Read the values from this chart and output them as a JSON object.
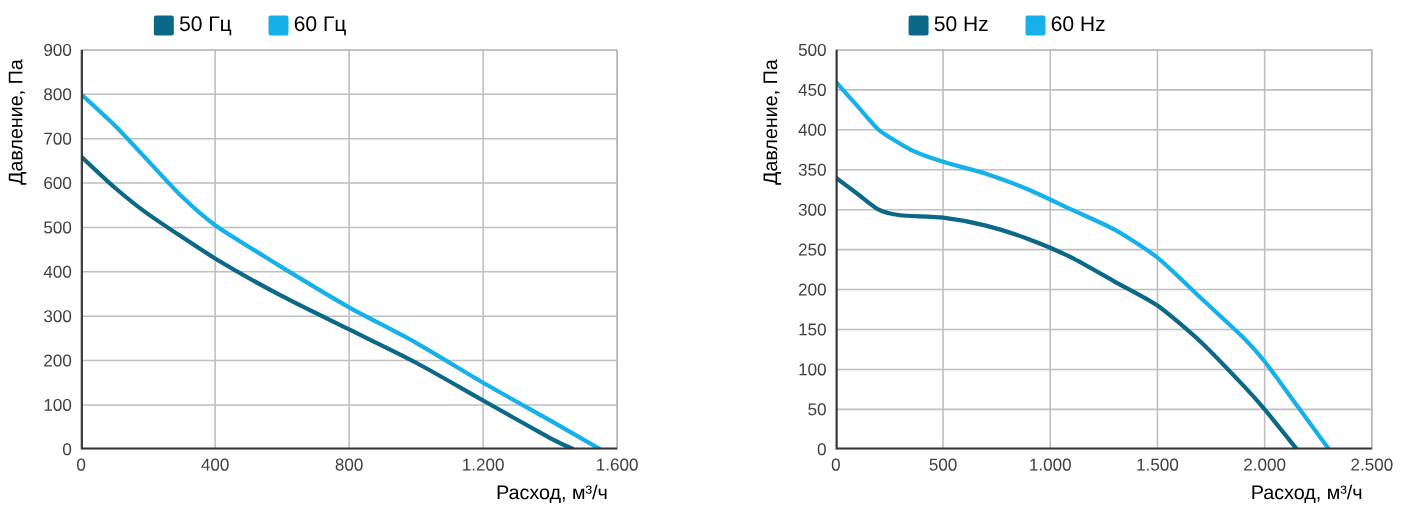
{
  "chart_data": [
    {
      "type": "line",
      "xlabel": "Расход, м³/ч",
      "ylabel": "Давление, Па",
      "grid": true,
      "legend": "top",
      "xlim": [
        0,
        1600
      ],
      "xticks": [
        0,
        400,
        800,
        {
          "value": 1200,
          "label": "1.200"
        },
        {
          "value": 1600,
          "label": "1.600"
        }
      ],
      "ylim": [
        0,
        900
      ],
      "yticks": [
        0,
        100,
        200,
        300,
        400,
        500,
        600,
        700,
        800,
        900
      ],
      "series": [
        {
          "name": "50 Гц",
          "color": "#0b6888",
          "x": [
            0,
            100,
            200,
            400,
            600,
            800,
            1000,
            1200,
            1400,
            1470
          ],
          "values": [
            660,
            590,
            530,
            430,
            345,
            270,
            195,
            110,
            25,
            0
          ]
        },
        {
          "name": "60 Гц",
          "color": "#16b0ea",
          "x": [
            0,
            100,
            200,
            300,
            400,
            600,
            800,
            1000,
            1200,
            1400,
            1550
          ],
          "values": [
            800,
            730,
            650,
            570,
            505,
            410,
            320,
            240,
            150,
            65,
            0
          ]
        }
      ]
    },
    {
      "type": "line",
      "xlabel": "Расход, м³/ч",
      "ylabel": "Давление, Па",
      "grid": true,
      "legend": "top",
      "xlim": [
        0,
        2500
      ],
      "xticks": [
        0,
        500,
        {
          "value": 1000,
          "label": "1.000"
        },
        {
          "value": 1500,
          "label": "1.500"
        },
        {
          "value": 2000,
          "label": "2.000"
        },
        {
          "value": 2500,
          "label": "2.500"
        }
      ],
      "ylim": [
        0,
        500
      ],
      "yticks": [
        0,
        50,
        100,
        150,
        200,
        250,
        300,
        350,
        400,
        450,
        500
      ],
      "series": [
        {
          "name": "50 Hz",
          "color": "#0b6888",
          "x": [
            0,
            100,
            200,
            300,
            500,
            700,
            900,
            1100,
            1300,
            1500,
            1700,
            1900,
            2000,
            2150
          ],
          "values": [
            340,
            320,
            300,
            293,
            290,
            280,
            263,
            240,
            210,
            180,
            135,
            80,
            50,
            0
          ]
        },
        {
          "name": "60 Hz",
          "color": "#16b0ea",
          "x": [
            0,
            100,
            200,
            350,
            500,
            700,
            900,
            1100,
            1300,
            1500,
            1700,
            1900,
            2000,
            2150,
            2300
          ],
          "values": [
            460,
            430,
            400,
            375,
            360,
            345,
            325,
            300,
            275,
            240,
            190,
            140,
            110,
            55,
            0
          ]
        }
      ]
    }
  ]
}
